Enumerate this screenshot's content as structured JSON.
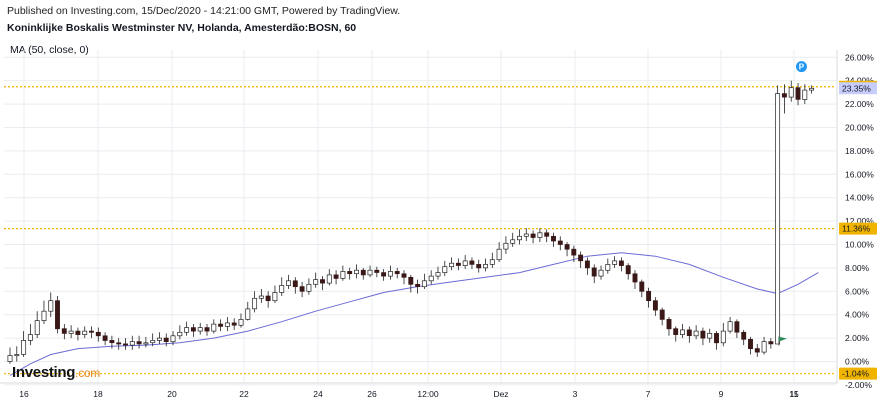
{
  "header": {
    "published": "Published on Investing.com, 15/Dec/2020 - 14:21:00 GMT, Powered by TradingView.",
    "title": "Koninklijke Boskalis Westminster NV, Holanda, Amesterdão:BOSN, 60",
    "indicator": "MA (50, close, 0)"
  },
  "logo": {
    "main": "Investing",
    "suffix": ".com"
  },
  "colors": {
    "up": "#ffffff",
    "down": "#3a1818",
    "wick": "#222222",
    "ma": "#6b6bd6",
    "level": "#f0b400",
    "grid": "#e9ecf0",
    "current_badge": "#c7cdfa",
    "flag": "#2e8b57",
    "marker": "#2196f3"
  },
  "chart_data": {
    "type": "candlestick",
    "y_unit": "%",
    "ylim": [
      -2,
      27
    ],
    "y_ticks": [
      "-2.00%",
      "0.00%",
      "2.00%",
      "4.00%",
      "6.00%",
      "8.00%",
      "10.00%",
      "12.00%",
      "14.00%",
      "16.00%",
      "18.00%",
      "20.00%",
      "22.00%",
      "24.00%",
      "26.00%"
    ],
    "x_ticks": [
      "16",
      "18",
      "20",
      "22",
      "24",
      "26",
      "12:00",
      "Dez",
      "3",
      "7",
      "9",
      "11",
      "15"
    ],
    "level_lines": [
      {
        "value": 23.48,
        "label": "23.48%"
      },
      {
        "value": 11.36,
        "label": "11.36%"
      },
      {
        "value": -1.04,
        "label": "-1.04%"
      }
    ],
    "current_value": {
      "value": 23.35,
      "label": "23.35%"
    },
    "marker_label": "P",
    "candles": [
      [
        0.0,
        0.5,
        1.2,
        -0.2
      ],
      [
        0.5,
        0.6,
        1.3,
        0.0
      ],
      [
        0.6,
        1.8,
        2.6,
        0.4
      ],
      [
        1.8,
        2.3,
        3.2,
        1.4
      ],
      [
        2.3,
        3.5,
        4.3,
        2.0
      ],
      [
        3.5,
        4.3,
        5.2,
        3.2
      ],
      [
        4.3,
        5.2,
        5.9,
        3.8
      ],
      [
        5.2,
        2.8,
        5.6,
        2.4
      ],
      [
        2.8,
        2.4,
        3.2,
        1.9
      ],
      [
        2.4,
        2.6,
        3.1,
        2.0
      ],
      [
        2.6,
        2.3,
        2.9,
        1.8
      ],
      [
        2.3,
        2.6,
        3.0,
        2.0
      ],
      [
        2.6,
        2.5,
        3.0,
        2.0
      ],
      [
        2.5,
        2.2,
        2.9,
        1.7
      ],
      [
        2.2,
        1.8,
        2.5,
        1.4
      ],
      [
        1.8,
        1.6,
        2.2,
        1.1
      ],
      [
        1.6,
        1.5,
        2.0,
        1.0
      ],
      [
        1.5,
        1.4,
        2.0,
        1.0
      ],
      [
        1.4,
        1.7,
        2.2,
        1.0
      ],
      [
        1.7,
        1.5,
        2.2,
        1.1
      ],
      [
        1.5,
        1.6,
        2.1,
        1.2
      ],
      [
        1.6,
        1.8,
        2.4,
        1.3
      ],
      [
        1.8,
        2.0,
        2.5,
        1.5
      ],
      [
        2.0,
        1.7,
        2.4,
        1.3
      ],
      [
        1.7,
        2.2,
        2.6,
        1.4
      ],
      [
        2.2,
        2.5,
        3.1,
        1.9
      ],
      [
        2.5,
        2.9,
        3.4,
        2.2
      ],
      [
        2.9,
        2.6,
        3.2,
        2.1
      ],
      [
        2.6,
        2.9,
        3.3,
        2.3
      ],
      [
        2.9,
        2.6,
        3.2,
        2.2
      ],
      [
        2.6,
        3.2,
        3.6,
        2.4
      ],
      [
        3.2,
        3.0,
        3.6,
        2.6
      ],
      [
        3.0,
        3.3,
        3.8,
        2.6
      ],
      [
        3.3,
        3.1,
        3.7,
        2.7
      ],
      [
        3.1,
        3.6,
        4.1,
        2.9
      ],
      [
        3.6,
        4.5,
        5.1,
        3.5
      ],
      [
        4.5,
        5.4,
        6.0,
        4.2
      ],
      [
        5.4,
        5.6,
        6.2,
        5.0
      ],
      [
        5.6,
        5.2,
        6.0,
        4.6
      ],
      [
        5.2,
        5.9,
        6.5,
        5.0
      ],
      [
        5.9,
        6.5,
        7.2,
        5.6
      ],
      [
        6.5,
        6.9,
        7.4,
        6.2
      ],
      [
        6.9,
        6.4,
        7.2,
        5.8
      ],
      [
        6.4,
        6.0,
        6.8,
        5.5
      ],
      [
        6.0,
        6.6,
        7.1,
        5.7
      ],
      [
        6.6,
        7.0,
        7.6,
        6.3
      ],
      [
        7.0,
        6.7,
        7.3,
        6.1
      ],
      [
        6.7,
        7.4,
        7.9,
        6.5
      ],
      [
        7.4,
        7.1,
        7.8,
        6.6
      ],
      [
        7.1,
        7.7,
        8.2,
        6.9
      ],
      [
        7.7,
        7.5,
        8.0,
        7.0
      ],
      [
        7.5,
        7.8,
        8.3,
        7.1
      ],
      [
        7.8,
        7.4,
        8.0,
        7.0
      ],
      [
        7.4,
        7.8,
        8.2,
        7.2
      ],
      [
        7.8,
        7.6,
        8.1,
        7.2
      ],
      [
        7.6,
        7.3,
        7.9,
        6.9
      ],
      [
        7.3,
        7.7,
        8.2,
        7.0
      ],
      [
        7.7,
        7.5,
        8.0,
        7.1
      ],
      [
        7.5,
        7.2,
        7.8,
        6.6
      ],
      [
        7.2,
        6.6,
        7.4,
        5.9
      ],
      [
        6.6,
        6.4,
        7.0,
        5.8
      ],
      [
        6.4,
        6.9,
        7.5,
        6.2
      ],
      [
        6.9,
        7.3,
        7.8,
        6.6
      ],
      [
        7.3,
        7.6,
        8.1,
        7.0
      ],
      [
        7.6,
        8.1,
        8.6,
        7.3
      ],
      [
        8.1,
        8.4,
        8.9,
        7.8
      ],
      [
        8.4,
        8.2,
        8.8,
        7.8
      ],
      [
        8.2,
        8.6,
        9.1,
        7.9
      ],
      [
        8.6,
        8.3,
        8.9,
        7.9
      ],
      [
        8.3,
        8.0,
        8.7,
        7.6
      ],
      [
        8.0,
        8.3,
        8.8,
        7.7
      ],
      [
        8.3,
        8.7,
        9.3,
        8.0
      ],
      [
        8.7,
        9.6,
        10.2,
        8.5
      ],
      [
        9.6,
        10.1,
        10.7,
        9.2
      ],
      [
        10.1,
        10.4,
        11.0,
        9.8
      ],
      [
        10.4,
        10.7,
        11.3,
        10.0
      ],
      [
        10.7,
        10.9,
        11.4,
        10.3
      ],
      [
        10.9,
        10.6,
        11.2,
        10.1
      ],
      [
        10.6,
        11.0,
        11.4,
        10.2
      ],
      [
        11.0,
        10.7,
        11.3,
        10.2
      ],
      [
        10.7,
        10.3,
        11.0,
        9.8
      ],
      [
        10.3,
        10.0,
        10.7,
        9.5
      ],
      [
        10.0,
        9.6,
        10.2,
        9.0
      ],
      [
        9.6,
        9.1,
        9.9,
        8.5
      ],
      [
        9.1,
        8.6,
        9.4,
        8.0
      ],
      [
        8.6,
        8.0,
        8.9,
        7.4
      ],
      [
        8.0,
        7.3,
        8.3,
        6.7
      ],
      [
        7.3,
        7.8,
        8.2,
        7.0
      ],
      [
        7.8,
        8.3,
        8.8,
        7.5
      ],
      [
        8.3,
        8.6,
        9.0,
        8.0
      ],
      [
        8.6,
        8.2,
        8.9,
        7.7
      ],
      [
        8.2,
        7.5,
        8.4,
        7.0
      ],
      [
        7.5,
        6.8,
        7.8,
        6.2
      ],
      [
        6.8,
        6.0,
        7.0,
        5.5
      ],
      [
        6.0,
        5.2,
        6.3,
        4.6
      ],
      [
        5.2,
        4.4,
        5.5,
        3.9
      ],
      [
        4.4,
        3.6,
        4.6,
        3.1
      ],
      [
        3.6,
        2.8,
        3.8,
        2.2
      ],
      [
        2.8,
        2.3,
        3.0,
        1.7
      ],
      [
        2.3,
        2.7,
        3.2,
        2.0
      ],
      [
        2.7,
        2.2,
        3.0,
        1.6
      ],
      [
        2.2,
        2.6,
        3.1,
        1.9
      ],
      [
        2.6,
        2.0,
        2.9,
        1.4
      ],
      [
        2.0,
        2.4,
        2.8,
        1.6
      ],
      [
        2.4,
        1.6,
        2.6,
        1.0
      ],
      [
        1.6,
        2.6,
        3.3,
        1.3
      ],
      [
        2.6,
        3.4,
        3.8,
        2.4
      ],
      [
        3.4,
        2.5,
        3.6,
        2.0
      ],
      [
        2.5,
        1.9,
        2.7,
        1.4
      ],
      [
        1.9,
        1.1,
        2.1,
        0.6
      ],
      [
        1.1,
        0.8,
        1.5,
        0.4
      ],
      [
        0.8,
        1.7,
        2.1,
        0.6
      ],
      [
        1.7,
        1.5,
        2.0,
        1.1
      ],
      [
        1.5,
        22.9,
        23.6,
        11.6
      ],
      [
        22.9,
        22.6,
        23.7,
        21.2
      ],
      [
        22.6,
        23.4,
        24.0,
        22.2
      ],
      [
        23.4,
        22.4,
        23.8,
        21.9
      ],
      [
        22.4,
        23.2,
        23.7,
        22.0
      ],
      [
        23.2,
        23.35,
        23.6,
        22.9
      ]
    ],
    "ma_curve": [
      [
        0,
        -1.2
      ],
      [
        3,
        -0.2
      ],
      [
        6,
        0.6
      ],
      [
        10,
        1.1
      ],
      [
        15,
        1.3
      ],
      [
        20,
        1.4
      ],
      [
        25,
        1.6
      ],
      [
        30,
        2.0
      ],
      [
        35,
        2.6
      ],
      [
        40,
        3.4
      ],
      [
        45,
        4.3
      ],
      [
        50,
        5.1
      ],
      [
        55,
        5.9
      ],
      [
        60,
        6.4
      ],
      [
        65,
        6.8
      ],
      [
        70,
        7.2
      ],
      [
        75,
        7.6
      ],
      [
        80,
        8.3
      ],
      [
        85,
        9.0
      ],
      [
        90,
        9.3
      ],
      [
        95,
        9.0
      ],
      [
        100,
        8.3
      ],
      [
        105,
        7.2
      ],
      [
        110,
        6.2
      ],
      [
        113,
        5.8
      ],
      [
        116,
        6.6
      ],
      [
        119,
        7.6
      ]
    ]
  }
}
